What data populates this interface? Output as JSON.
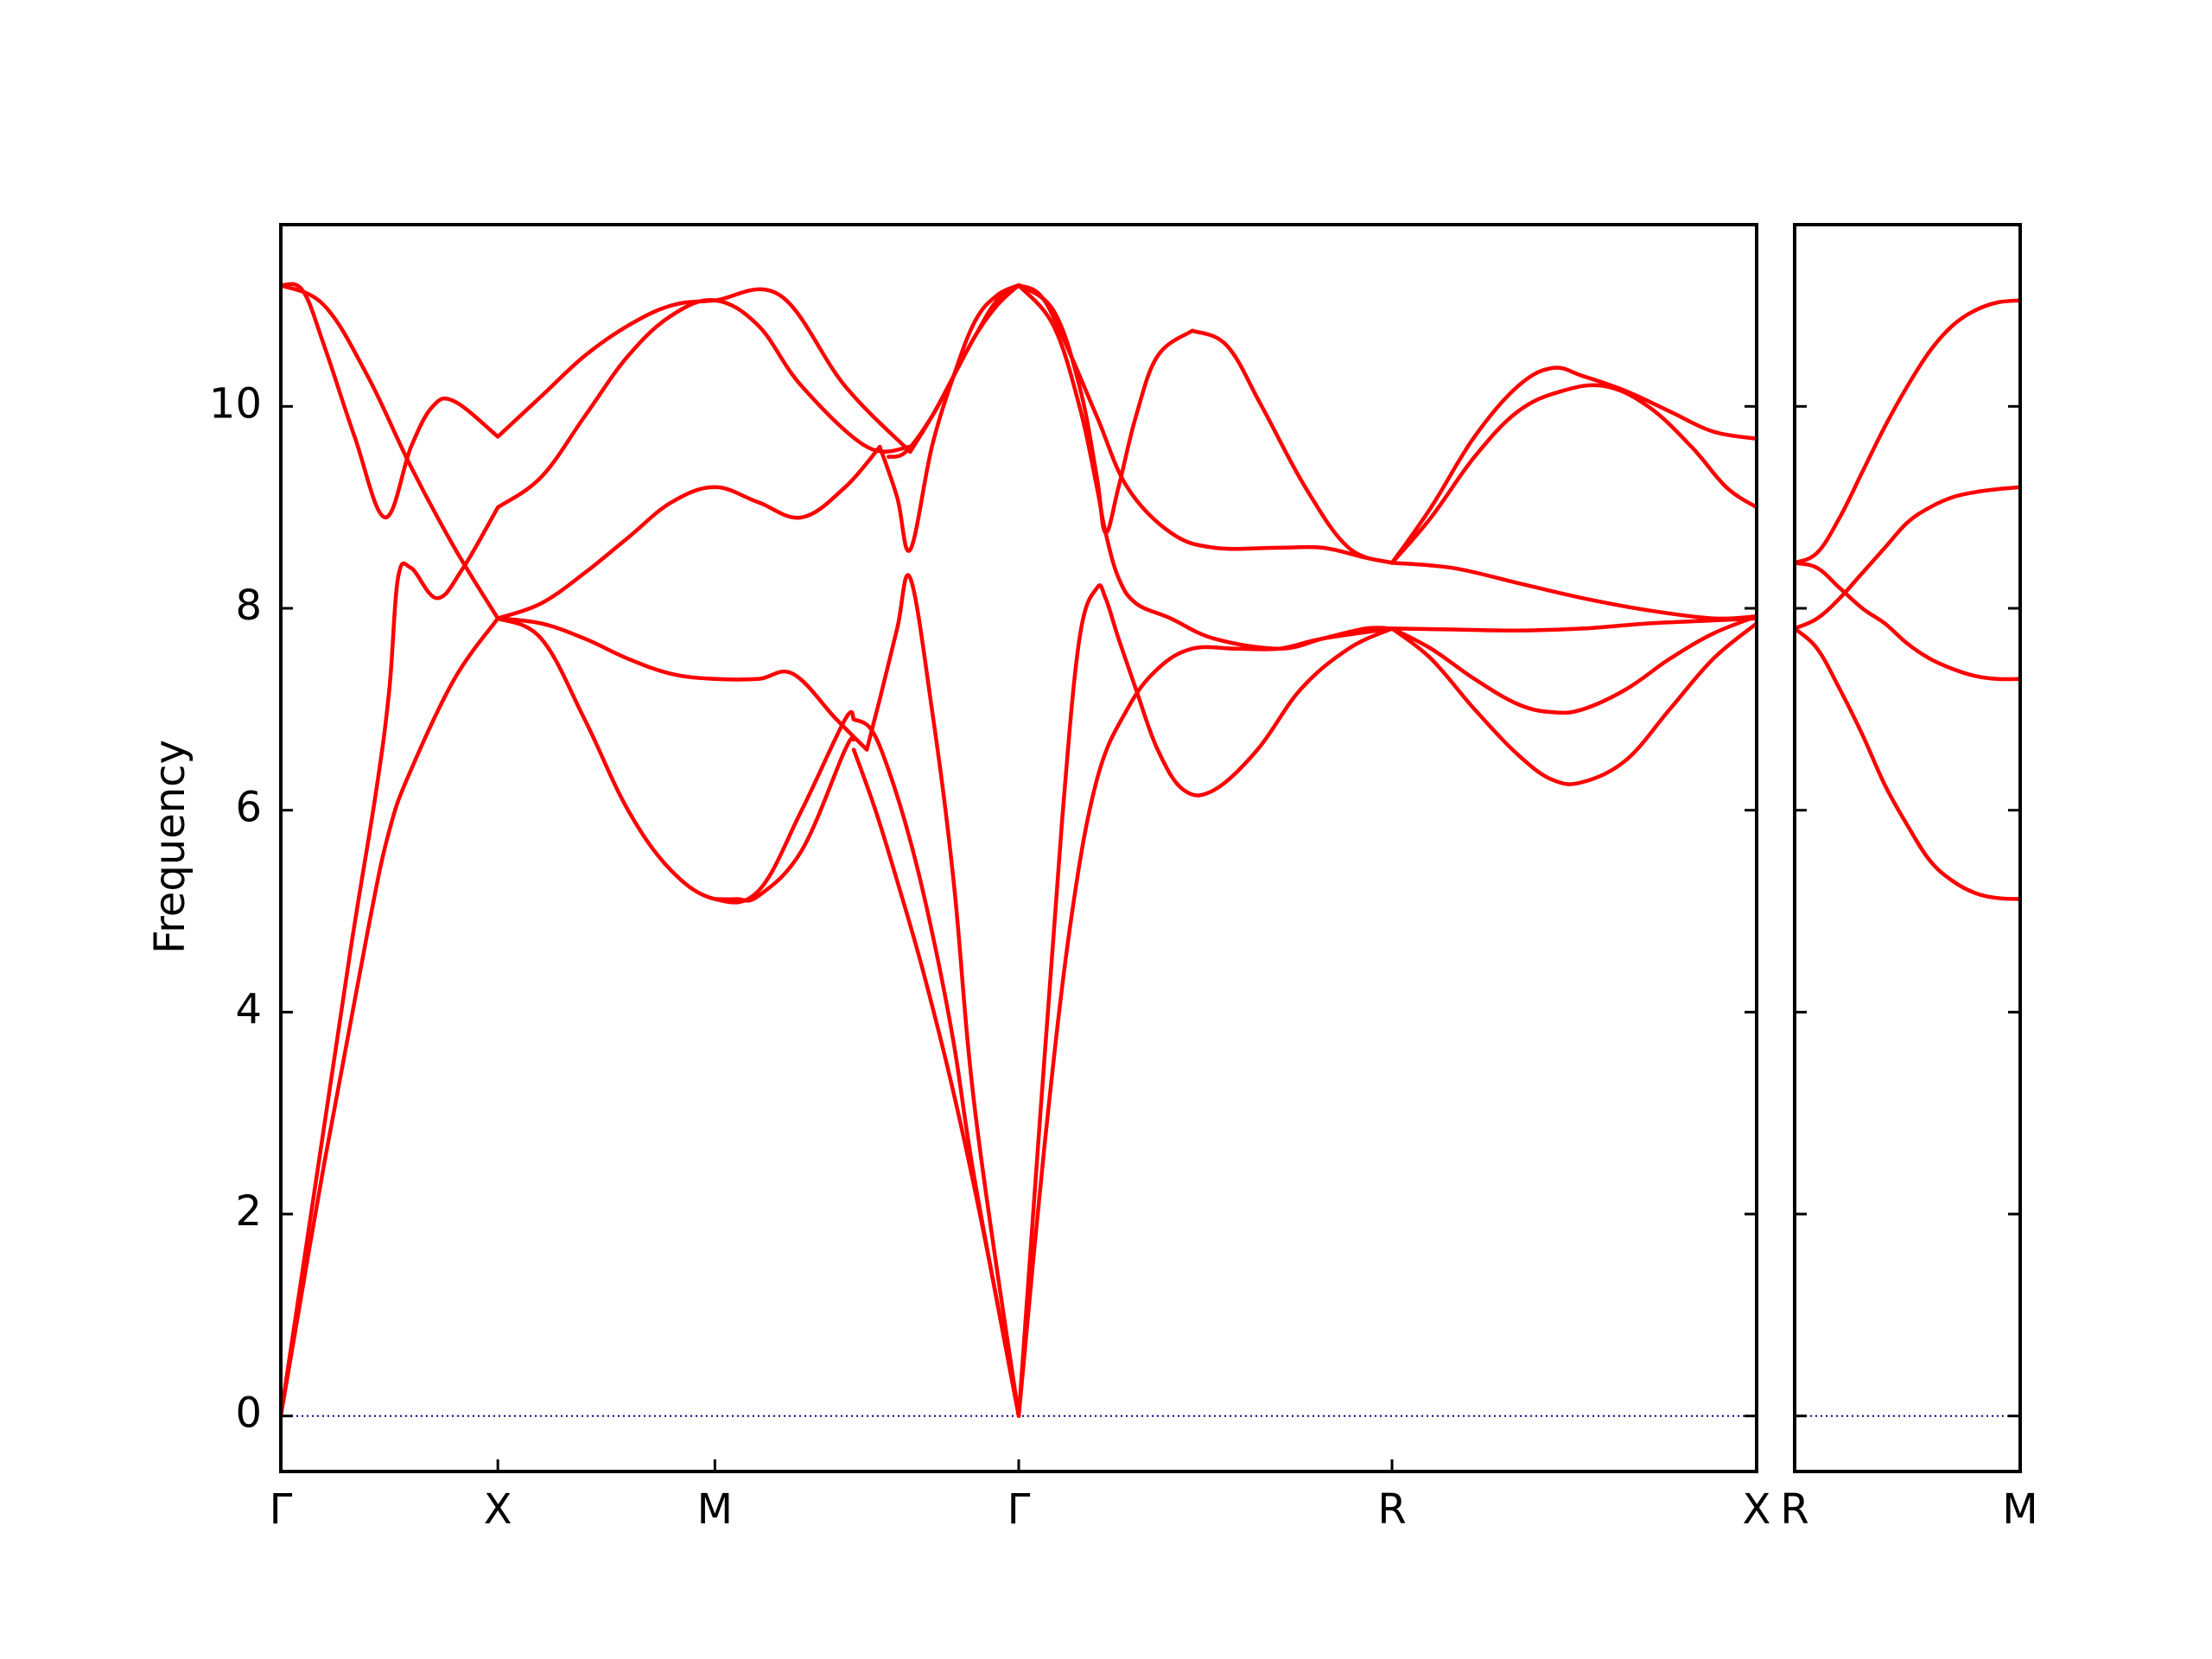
{
  "chart_data": {
    "type": "line",
    "ylabel": "Frequency",
    "xlabel": "",
    "title": "",
    "ylim": [
      -0.55,
      11.8
    ],
    "yticks": [
      0,
      2,
      4,
      6,
      8,
      10
    ],
    "grid": false,
    "line_color": "#ff0000",
    "zero_line_color": "#00008b",
    "panels": [
      {
        "xlim": [
          0,
          3.4
        ],
        "xticks": [
          {
            "label": "Γ",
            "x": 0
          },
          {
            "label": "X",
            "x": 0.5
          },
          {
            "label": "M",
            "x": 1.0
          },
          {
            "label": "Γ",
            "x": 1.7
          },
          {
            "label": "R",
            "x": 2.56
          },
          {
            "label": "X",
            "x": 3.4
          }
        ],
        "series": [
          {
            "x": [
              0,
              0.08,
              0.16,
              0.22,
              0.25,
              0.27,
              0.3,
              0.36,
              0.42,
              0.5
            ],
            "y": [
              0,
              2.3,
              4.6,
              6.2,
              7.2,
              8.3,
              8.4,
              8.1,
              8.4,
              9.0
            ]
          },
          {
            "x": [
              0,
              0.1,
              0.2,
              0.25,
              0.3,
              0.4,
              0.5
            ],
            "y": [
              0,
              2.5,
              4.8,
              5.8,
              6.4,
              7.3,
              7.9
            ]
          },
          {
            "x": [
              0,
              0.05,
              0.1,
              0.17,
              0.24,
              0.3,
              0.35,
              0.4,
              0.5
            ],
            "y": [
              11.2,
              11.15,
              10.6,
              9.7,
              8.9,
              9.6,
              10.0,
              10.05,
              9.7
            ]
          },
          {
            "x": [
              0,
              0.1,
              0.2,
              0.3,
              0.4,
              0.5
            ],
            "y": [
              11.2,
              11.0,
              10.3,
              9.4,
              8.6,
              7.9
            ]
          },
          {
            "x": [
              0.5,
              0.6,
              0.7,
              0.8,
              0.9,
              1.0,
              1.15,
              1.3,
              1.45
            ],
            "y": [
              9.7,
              10.1,
              10.5,
              10.8,
              11.0,
              11.05,
              11.1,
              10.2,
              9.55
            ]
          },
          {
            "x": [
              0.5,
              0.6,
              0.7,
              0.8,
              0.9,
              1.0,
              1.1,
              1.2,
              1.35,
              1.45
            ],
            "y": [
              9.0,
              9.3,
              9.9,
              10.5,
              10.9,
              11.05,
              10.8,
              10.2,
              9.6,
              9.6
            ]
          },
          {
            "x": [
              0.5,
              0.6,
              0.7,
              0.8,
              0.9,
              1.0,
              1.1,
              1.2,
              1.3,
              1.38
            ],
            "y": [
              7.9,
              8.05,
              8.35,
              8.7,
              9.05,
              9.2,
              9.05,
              8.9,
              9.2,
              9.6
            ]
          },
          {
            "x": [
              0.5,
              0.6,
              0.7,
              0.8,
              0.9,
              1.0,
              1.1,
              1.18,
              1.28,
              1.35
            ],
            "y": [
              7.9,
              7.85,
              7.7,
              7.5,
              7.35,
              7.3,
              7.3,
              7.35,
              6.9,
              6.6
            ]
          },
          {
            "x": [
              0.5,
              0.6,
              0.7,
              0.8,
              0.9,
              1.0,
              1.1,
              1.2,
              1.3,
              1.32
            ],
            "y": [
              7.9,
              7.7,
              6.9,
              6.0,
              5.4,
              5.12,
              5.2,
              6.0,
              6.9,
              6.9
            ]
          },
          {
            "x": [
              1.0,
              1.05,
              1.1,
              1.2,
              1.3,
              1.32
            ],
            "y": [
              5.12,
              5.12,
              5.15,
              5.6,
              6.6,
              6.7
            ]
          },
          {
            "x": [
              1.45,
              1.5,
              1.55,
              1.6,
              1.65,
              1.7
            ],
            "y": [
              9.55,
              9.9,
              10.3,
              10.7,
              11.05,
              11.2
            ]
          },
          {
            "x": [
              1.4,
              1.44,
              1.5,
              1.55,
              1.6,
              1.65,
              1.7
            ],
            "y": [
              9.5,
              9.55,
              9.9,
              10.3,
              10.7,
              11.0,
              11.2
            ]
          },
          {
            "x": [
              1.38,
              1.42,
              1.45,
              1.5,
              1.55,
              1.6,
              1.65,
              1.7
            ],
            "y": [
              9.6,
              9.1,
              8.58,
              9.6,
              10.3,
              10.85,
              11.1,
              11.2
            ]
          },
          {
            "x": [
              1.35,
              1.38,
              1.42,
              1.45,
              1.5,
              1.55,
              1.6,
              1.7
            ],
            "y": [
              6.6,
              7.1,
              7.8,
              8.3,
              7.0,
              5.3,
              3.0,
              0
            ]
          },
          {
            "x": [
              1.32,
              1.36,
              1.4,
              1.45,
              1.5,
              1.55,
              1.6,
              1.7
            ],
            "y": [
              6.9,
              6.8,
              6.4,
              5.7,
              4.8,
              3.7,
              2.3,
              0
            ]
          },
          {
            "x": [
              1.32,
              1.37,
              1.42,
              1.48,
              1.55,
              1.62,
              1.7
            ],
            "y": [
              6.6,
              6.0,
              5.3,
              4.4,
              3.2,
              1.8,
              0
            ]
          },
          {
            "x": [
              1.7,
              1.78,
              1.84,
              1.88,
              1.9,
              1.93,
              1.97,
              2.02,
              2.1
            ],
            "y": [
              11.2,
              10.95,
              10.2,
              9.3,
              8.75,
              9.2,
              9.9,
              10.5,
              10.75
            ]
          },
          {
            "x": [
              2.1,
              2.18,
              2.26,
              2.36,
              2.46,
              2.56
            ],
            "y": [
              10.75,
              10.6,
              10.0,
              9.2,
              8.6,
              8.45
            ]
          },
          {
            "x": [
              1.7,
              1.75,
              1.8,
              1.88,
              1.95,
              2.05,
              2.15,
              2.3,
              2.4,
              2.5,
              2.56
            ],
            "y": [
              11.2,
              11.1,
              10.7,
              9.9,
              9.2,
              8.75,
              8.6,
              8.6,
              8.6,
              8.5,
              8.45
            ]
          },
          {
            "x": [
              1.7,
              1.78,
              1.84,
              1.88,
              1.9,
              1.93,
              1.97,
              2.05,
              2.15,
              2.3,
              2.4,
              2.5,
              2.56
            ],
            "y": [
              11.2,
              10.8,
              10.0,
              9.2,
              8.75,
              8.3,
              8.05,
              7.9,
              7.7,
              7.6,
              7.7,
              7.8,
              7.8
            ]
          },
          {
            "x": [
              1.7,
              1.75,
              1.8,
              1.84,
              1.88,
              1.9,
              1.93,
              1.97,
              2.02,
              2.08,
              2.15,
              2.25,
              2.35,
              2.46,
              2.56
            ],
            "y": [
              0,
              3.0,
              5.9,
              7.7,
              8.2,
              8.1,
              7.7,
              7.2,
              6.6,
              6.2,
              6.2,
              6.6,
              7.2,
              7.6,
              7.8
            ]
          },
          {
            "x": [
              1.7,
              1.76,
              1.82,
              1.88,
              1.95,
              2.02,
              2.1,
              2.2,
              2.3,
              2.4,
              2.56
            ],
            "y": [
              0,
              2.7,
              4.9,
              6.3,
              7.0,
              7.4,
              7.6,
              7.6,
              7.6,
              7.7,
              7.8
            ]
          },
          {
            "x": [
              2.56,
              2.65,
              2.75,
              2.85,
              2.93,
              3.0,
              3.1,
              3.2,
              3.3,
              3.4
            ],
            "y": [
              8.45,
              9.0,
              9.7,
              10.2,
              10.38,
              10.3,
              10.15,
              9.95,
              9.75,
              9.68
            ]
          },
          {
            "x": [
              2.56,
              2.65,
              2.75,
              2.85,
              2.95,
              3.05,
              3.15,
              3.25,
              3.33,
              3.4
            ],
            "y": [
              8.45,
              8.9,
              9.5,
              9.95,
              10.15,
              10.2,
              10.0,
              9.6,
              9.2,
              9.0
            ]
          },
          {
            "x": [
              2.56,
              2.7,
              2.85,
              3.0,
              3.15,
              3.3,
              3.4
            ],
            "y": [
              8.45,
              8.4,
              8.25,
              8.1,
              7.98,
              7.9,
              7.92
            ]
          },
          {
            "x": [
              2.56,
              2.7,
              2.85,
              3.0,
              3.15,
              3.3,
              3.4
            ],
            "y": [
              7.8,
              7.79,
              7.78,
              7.8,
              7.85,
              7.88,
              7.9
            ]
          },
          {
            "x": [
              2.56,
              2.65,
              2.75,
              2.85,
              2.93,
              3.0,
              3.1,
              3.2,
              3.3,
              3.4
            ],
            "y": [
              7.8,
              7.6,
              7.3,
              7.05,
              6.97,
              7.0,
              7.2,
              7.5,
              7.75,
              7.92
            ]
          },
          {
            "x": [
              2.56,
              2.65,
              2.75,
              2.85,
              2.93,
              3.0,
              3.1,
              3.2,
              3.3,
              3.4
            ],
            "y": [
              7.8,
              7.5,
              7.0,
              6.55,
              6.3,
              6.28,
              6.5,
              7.0,
              7.5,
              7.85
            ]
          }
        ]
      },
      {
        "xlim": [
          0,
          0.5
        ],
        "xticks": [
          {
            "label": "R",
            "x": 0
          },
          {
            "label": "M",
            "x": 0.5
          }
        ],
        "series": [
          {
            "x": [
              0,
              0.05,
              0.1,
              0.15,
              0.2,
              0.25,
              0.3,
              0.35,
              0.4,
              0.45,
              0.5
            ],
            "y": [
              8.45,
              8.55,
              8.9,
              9.35,
              9.8,
              10.2,
              10.55,
              10.8,
              10.95,
              11.03,
              11.05
            ]
          },
          {
            "x": [
              0,
              0.05,
              0.1,
              0.15,
              0.2,
              0.25,
              0.3,
              0.35,
              0.4,
              0.45,
              0.5
            ],
            "y": [
              7.8,
              7.9,
              8.1,
              8.35,
              8.6,
              8.85,
              9.0,
              9.1,
              9.15,
              9.18,
              9.2
            ]
          },
          {
            "x": [
              0,
              0.05,
              0.1,
              0.15,
              0.2,
              0.25,
              0.3,
              0.35,
              0.4,
              0.45,
              0.5
            ],
            "y": [
              8.45,
              8.4,
              8.2,
              8.0,
              7.85,
              7.65,
              7.5,
              7.4,
              7.33,
              7.3,
              7.3
            ]
          },
          {
            "x": [
              0,
              0.05,
              0.1,
              0.15,
              0.2,
              0.25,
              0.3,
              0.35,
              0.4,
              0.45,
              0.5
            ],
            "y": [
              7.8,
              7.6,
              7.2,
              6.75,
              6.25,
              5.85,
              5.5,
              5.3,
              5.18,
              5.13,
              5.12
            ]
          }
        ]
      }
    ]
  }
}
